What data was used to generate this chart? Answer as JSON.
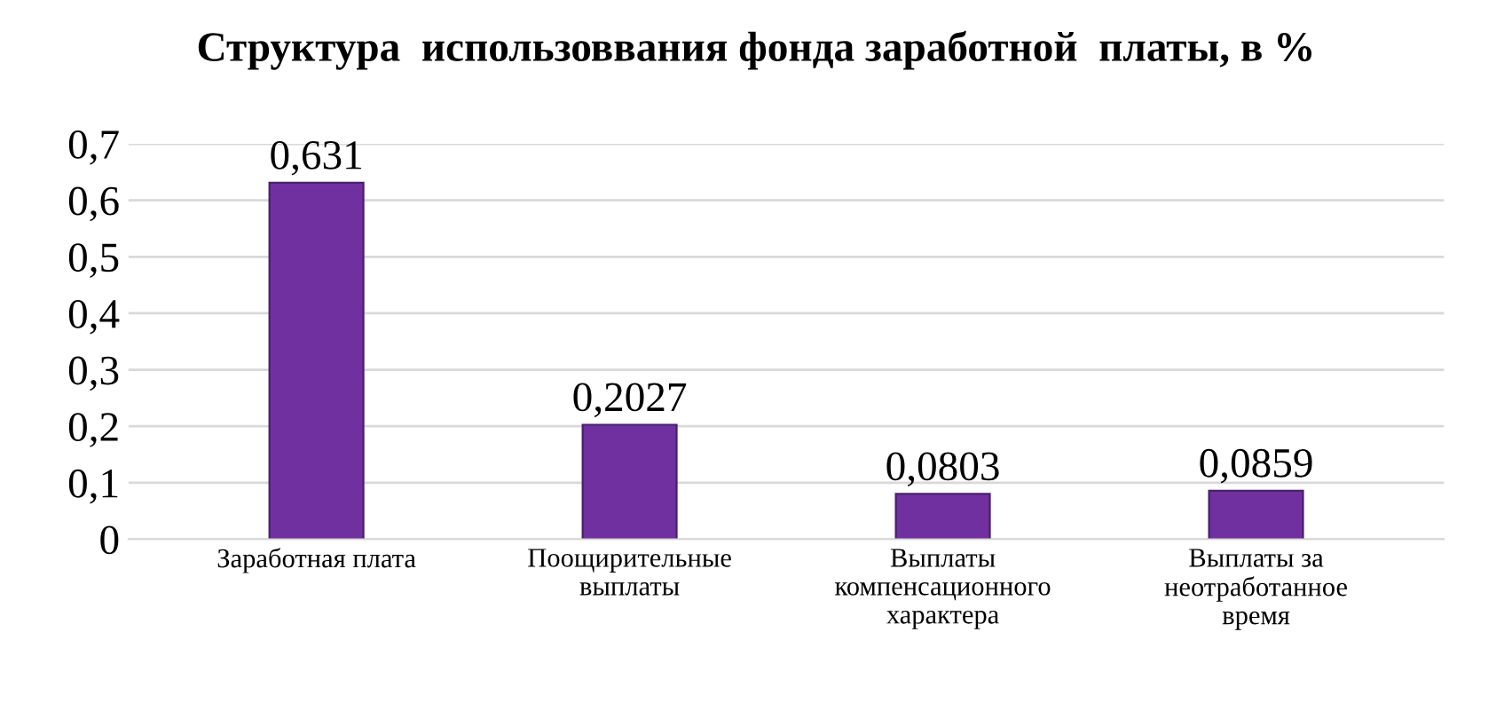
{
  "chart_data": {
    "type": "bar",
    "title": "Структура  использоввания фонда заработной  платы, в %",
    "categories": [
      "Заработная плата",
      "Поощирительные\nвыплаты",
      "Выплаты\nкомпенсационного\nхарактера",
      "Выплаты за\nнеотработанное\nвремя"
    ],
    "values": [
      0.631,
      0.2027,
      0.0803,
      0.0859
    ],
    "value_labels": [
      "0,631",
      "0,2027",
      "0,0803",
      "0,0859"
    ],
    "color": "#7030a0",
    "ylim": [
      0,
      0.7
    ],
    "yticks": [
      {
        "value": 0,
        "label": "0"
      },
      {
        "value": 0.1,
        "label": "0,1"
      },
      {
        "value": 0.2,
        "label": "0,2"
      },
      {
        "value": 0.3,
        "label": "0,3"
      },
      {
        "value": 0.4,
        "label": "0,4"
      },
      {
        "value": 0.5,
        "label": "0,5"
      },
      {
        "value": 0.6,
        "label": "0,6"
      },
      {
        "value": 0.7,
        "label": "0,7"
      }
    ],
    "grid": "y"
  }
}
